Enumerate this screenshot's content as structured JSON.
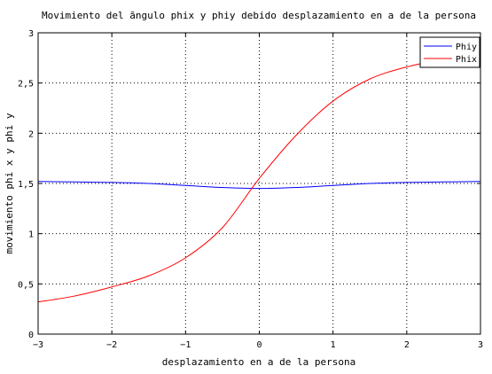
{
  "chart_data": {
    "type": "line",
    "title": "Movimiento del ãngulo phix  y phiy debido desplazamiento en a de la persona",
    "xlabel": "desplazamiento en a de la persona",
    "ylabel": "movimiento phi x y phi y",
    "xlim": [
      -3,
      3
    ],
    "ylim": [
      0,
      3
    ],
    "xticks": [
      -3,
      -2,
      -1,
      0,
      1,
      2,
      3
    ],
    "xtick_labels": [
      "−3",
      "−2",
      "−1",
      "0",
      "1",
      "2",
      "3"
    ],
    "yticks": [
      0,
      0.5,
      1,
      1.5,
      2,
      2.5,
      3
    ],
    "ytick_labels": [
      "0",
      "0,5",
      "1",
      "1,5",
      "2",
      "2,5",
      "3"
    ],
    "grid": true,
    "legend_position": "top-right",
    "series": [
      {
        "name": "Phiy",
        "color": "#0000ff",
        "x": [
          -3,
          -2.5,
          -2,
          -1.5,
          -1,
          -0.5,
          0,
          0.5,
          1,
          1.5,
          2,
          2.5,
          3
        ],
        "y": [
          1.52,
          1.515,
          1.51,
          1.5,
          1.48,
          1.46,
          1.45,
          1.46,
          1.48,
          1.5,
          1.51,
          1.515,
          1.52
        ]
      },
      {
        "name": "Phix",
        "color": "#ff0000",
        "x": [
          -3,
          -2.5,
          -2,
          -1.5,
          -1,
          -0.5,
          0,
          0.5,
          1,
          1.5,
          2,
          2.5,
          3
        ],
        "y": [
          0.32,
          0.38,
          0.47,
          0.58,
          0.76,
          1.06,
          1.55,
          1.98,
          2.32,
          2.54,
          2.66,
          2.74,
          2.82
        ]
      }
    ]
  }
}
